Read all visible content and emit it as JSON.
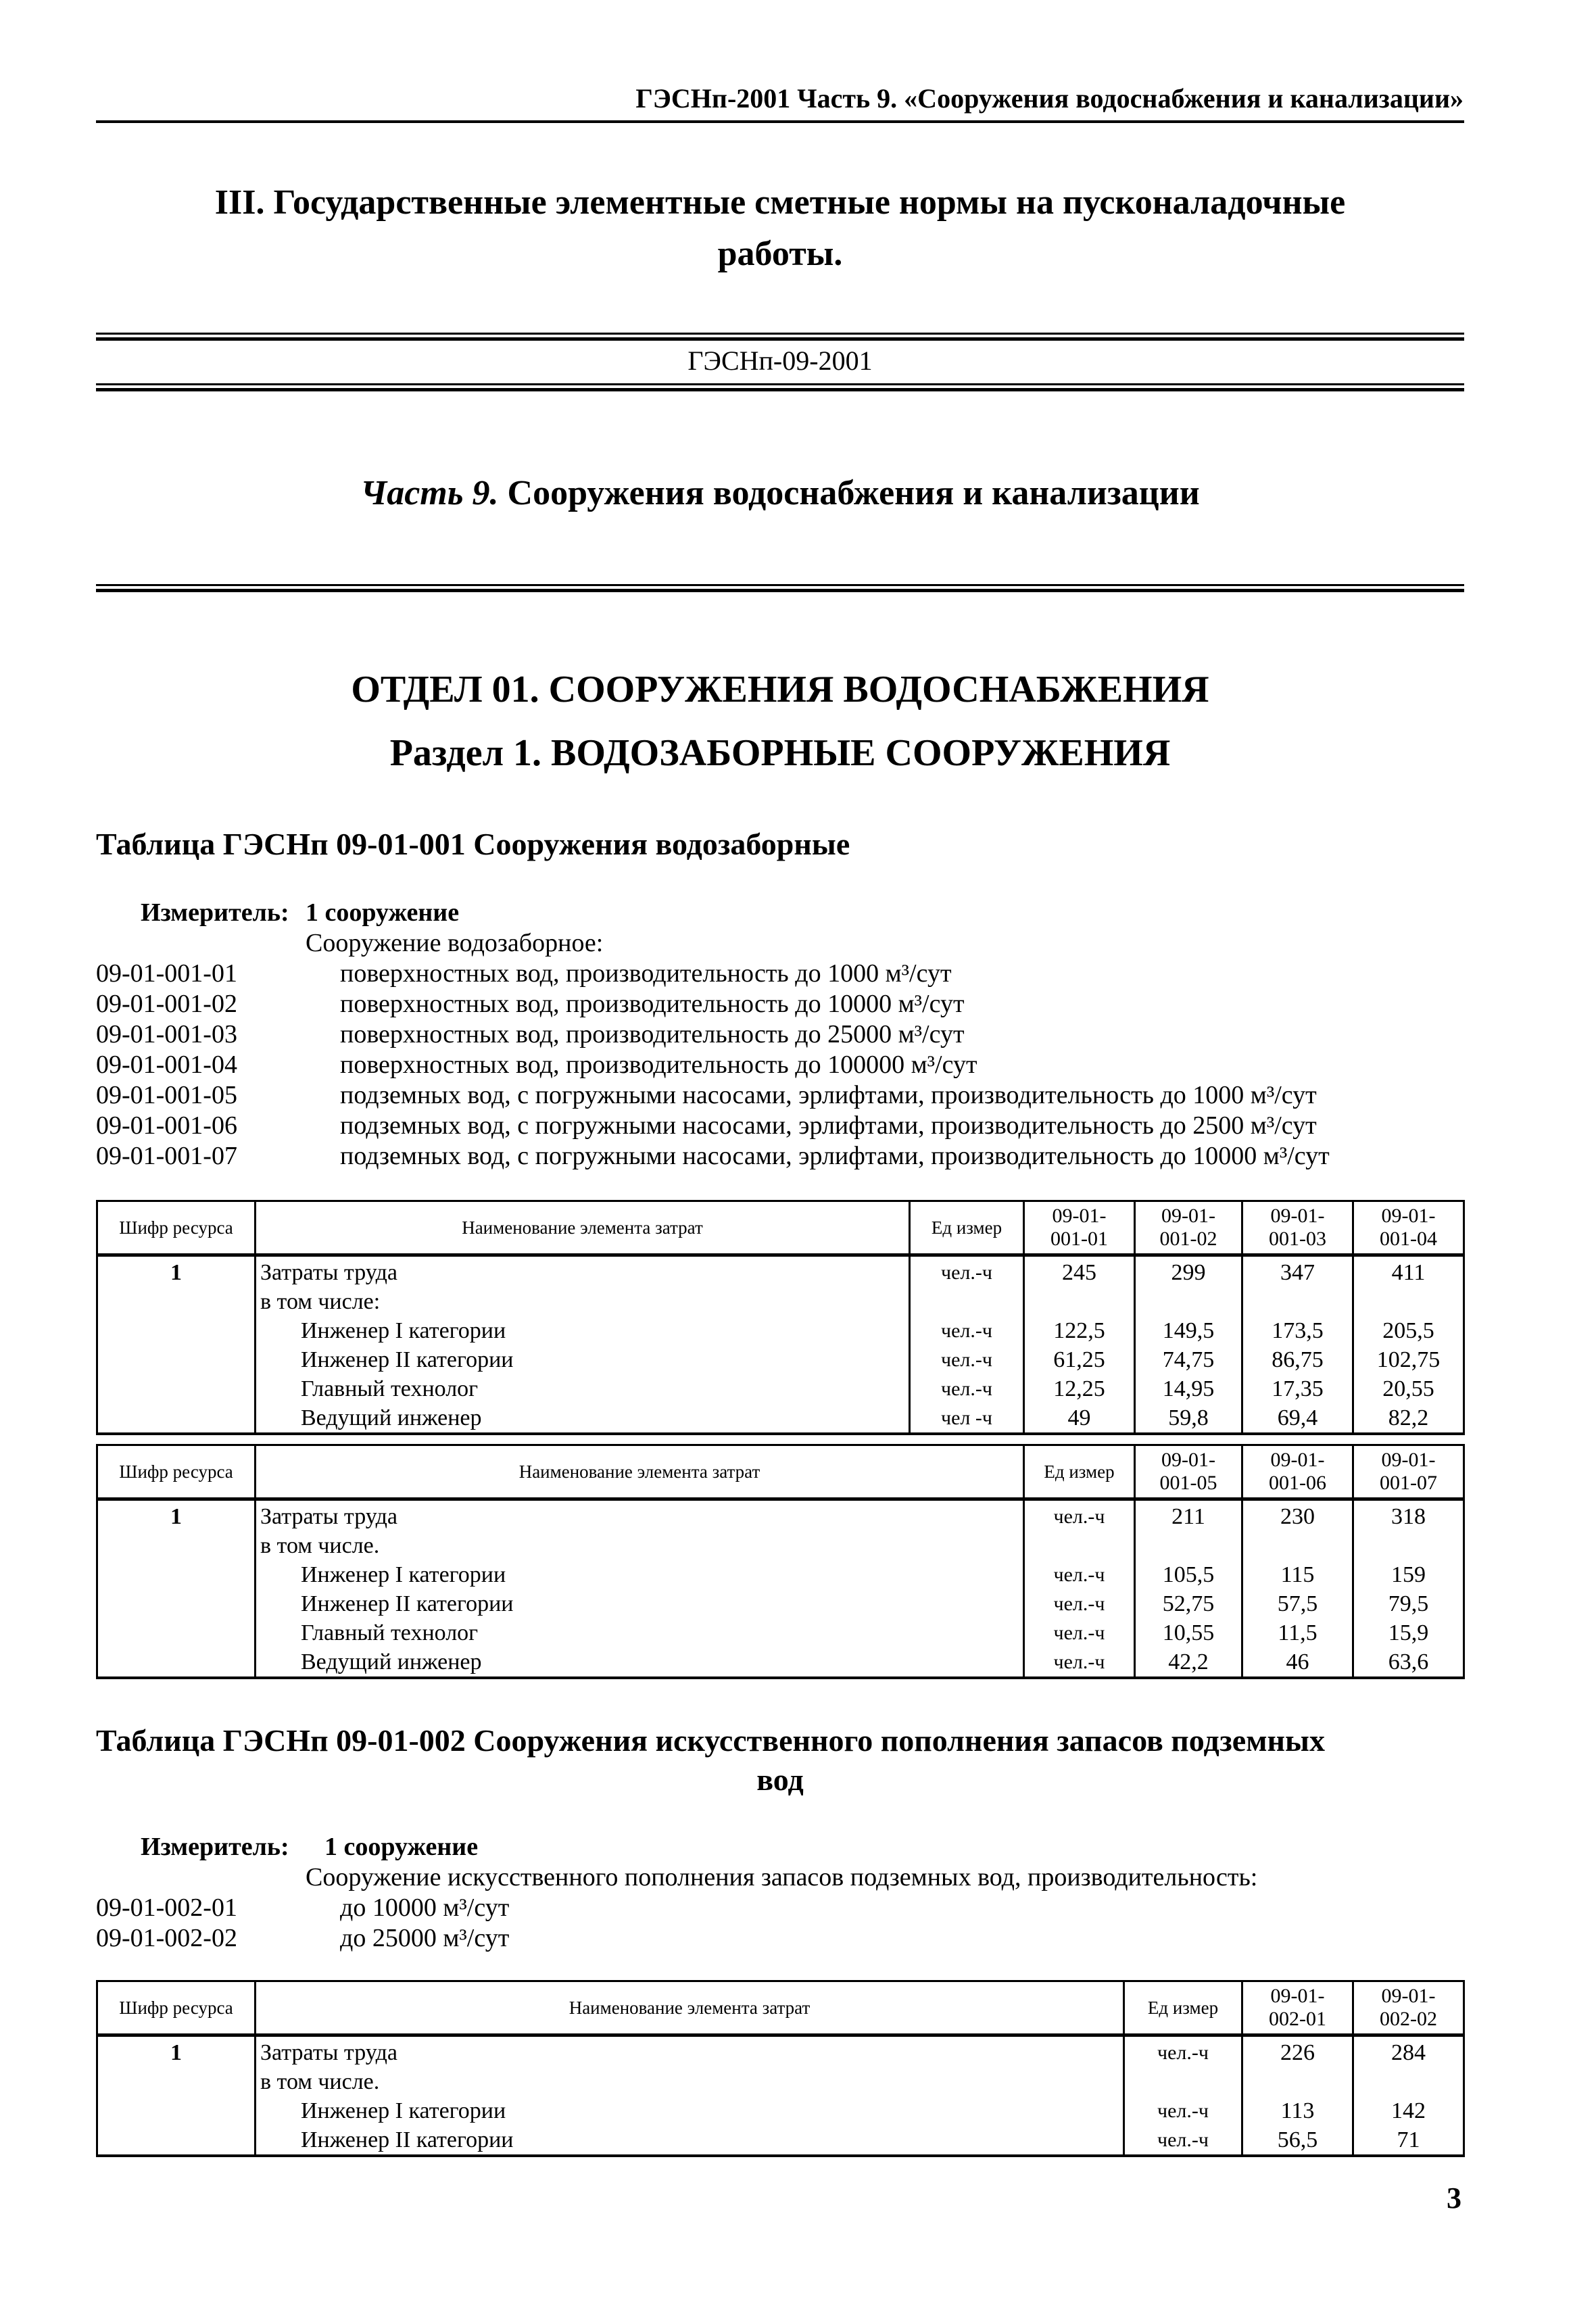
{
  "running_header": "ГЭСНп-2001 Часть 9. «Сооружения водоснабжения и канализации»",
  "main_title": "III. Государственные элементные сметные нормы на пусконаладочные работы.",
  "doc_code": "ГЭСНп-09-2001",
  "part": {
    "label": "Часть 9.",
    "title": "Сооружения водоснабжения и канализации"
  },
  "department": "ОТДЕЛ 01. СООРУЖЕНИЯ ВОДОСНАБЖЕНИЯ",
  "section": "Раздел 1. ВОДОЗАБОРНЫЕ СООРУЖЕНИЯ",
  "page_number": "3",
  "tables": [
    {
      "title": "Таблица ГЭСНп 09-01-001 Сооружения водозаборные",
      "measure_label": "Измеритель:",
      "measure_value": "1 сооружение",
      "intro": "Сооружение водозаборное:",
      "items": [
        {
          "code": "09-01-001-01",
          "text": "поверхностных вод, производительность до 1000 м³/сут"
        },
        {
          "code": "09-01-001-02",
          "text": "поверхностных вод, производительность до 10000 м³/сут"
        },
        {
          "code": "09-01-001-03",
          "text": "поверхностных вод, производительность до 25000 м³/сут"
        },
        {
          "code": "09-01-001-04",
          "text": "поверхностных вод, производительность до 100000 м³/сут"
        },
        {
          "code": "09-01-001-05",
          "text": "подземных вод, с погружными насосами, эрлифтами, производительность до 1000 м³/сут"
        },
        {
          "code": "09-01-001-06",
          "text": "подземных вод, с погружными насосами, эрлифтами, производительность до 2500 м³/сут"
        },
        {
          "code": "09-01-001-07",
          "text": "подземных вод, с погружными насосами, эрлифтами, производительность до 10000 м³/сут"
        }
      ]
    },
    {
      "title_line1": "Таблица ГЭСНп 09-01-002 Сооружения искусственного пополнения запасов подземных",
      "title_line2": "вод",
      "measure_label": "Измеритель:",
      "measure_value": "1 сооружение",
      "intro": "Сооружение искусственного пополнения запасов подземных вод, производительность:",
      "items": [
        {
          "code": "09-01-002-01",
          "text": "до 10000 м³/сут"
        },
        {
          "code": "09-01-002-02",
          "text": "до 25000 м³/сут"
        }
      ]
    }
  ],
  "grids": [
    {
      "headers": {
        "resource": "Шифр ресурса",
        "name": "Наименование элемента затрат",
        "unit": "Ед  измер",
        "cols": [
          "09-01-\n001-01",
          "09-01-\n001-02",
          "09-01-\n001-03",
          "09-01-\n001-04"
        ]
      },
      "rows": [
        {
          "res": "1",
          "name": "Затраты труда",
          "unit": "чел.-ч",
          "vals": [
            "245",
            "299",
            "347",
            "411"
          ],
          "indent": false
        },
        {
          "res": "",
          "name": "в том числе:",
          "unit": "",
          "vals": [
            "",
            "",
            "",
            ""
          ],
          "indent": false
        },
        {
          "res": "",
          "name": "Инженер I категории",
          "unit": "чел.-ч",
          "vals": [
            "122,5",
            "149,5",
            "173,5",
            "205,5"
          ],
          "indent": true
        },
        {
          "res": "",
          "name": "Инженер II категории",
          "unit": "чел.-ч",
          "vals": [
            "61,25",
            "74,75",
            "86,75",
            "102,75"
          ],
          "indent": true
        },
        {
          "res": "",
          "name": "Главный технолог",
          "unit": "чел.-ч",
          "vals": [
            "12,25",
            "14,95",
            "17,35",
            "20,55"
          ],
          "indent": true
        },
        {
          "res": "",
          "name": "Ведущий инженер",
          "unit": "чел -ч",
          "vals": [
            "49",
            "59,8",
            "69,4",
            "82,2"
          ],
          "indent": true
        }
      ]
    },
    {
      "headers": {
        "resource": "Шифр ресурса",
        "name": "Наименование элемента затрат",
        "unit": "Ед  измер",
        "cols": [
          "09-01-\n001-05",
          "09-01-\n001-06",
          "09-01-\n001-07"
        ]
      },
      "rows": [
        {
          "res": "1",
          "name": "Затраты труда",
          "unit": "чел.-ч",
          "vals": [
            "211",
            "230",
            "318"
          ],
          "indent": false
        },
        {
          "res": "",
          "name": "в том числе.",
          "unit": "",
          "vals": [
            "",
            "",
            ""
          ],
          "indent": false
        },
        {
          "res": "",
          "name": "Инженер I категории",
          "unit": "чел.-ч",
          "vals": [
            "105,5",
            "115",
            "159"
          ],
          "indent": true
        },
        {
          "res": "",
          "name": "Инженер II категории",
          "unit": "чел.-ч",
          "vals": [
            "52,75",
            "57,5",
            "79,5"
          ],
          "indent": true
        },
        {
          "res": "",
          "name": "Главный технолог",
          "unit": "чел.-ч",
          "vals": [
            "10,55",
            "11,5",
            "15,9"
          ],
          "indent": true
        },
        {
          "res": "",
          "name": "Ведущий инженер",
          "unit": "чел.-ч",
          "vals": [
            "42,2",
            "46",
            "63,6"
          ],
          "indent": true
        }
      ]
    },
    {
      "headers": {
        "resource": "Шифр ресурса",
        "name": "Наименование элемента затрат",
        "unit": "Ед  измер",
        "cols": [
          "09-01-\n002-01",
          "09-01-\n002-02"
        ]
      },
      "rows": [
        {
          "res": "1",
          "name": "Затраты труда",
          "unit": "чел.-ч",
          "vals": [
            "226",
            "284"
          ],
          "indent": false
        },
        {
          "res": "",
          "name": "в том числе.",
          "unit": "",
          "vals": [
            "",
            ""
          ],
          "indent": false
        },
        {
          "res": "",
          "name": "Инженер I категории",
          "unit": "чел.-ч",
          "vals": [
            "113",
            "142"
          ],
          "indent": true
        },
        {
          "res": "",
          "name": "Инженер II категории",
          "unit": "чел.-ч",
          "vals": [
            "56,5",
            "71"
          ],
          "indent": true
        }
      ]
    }
  ]
}
